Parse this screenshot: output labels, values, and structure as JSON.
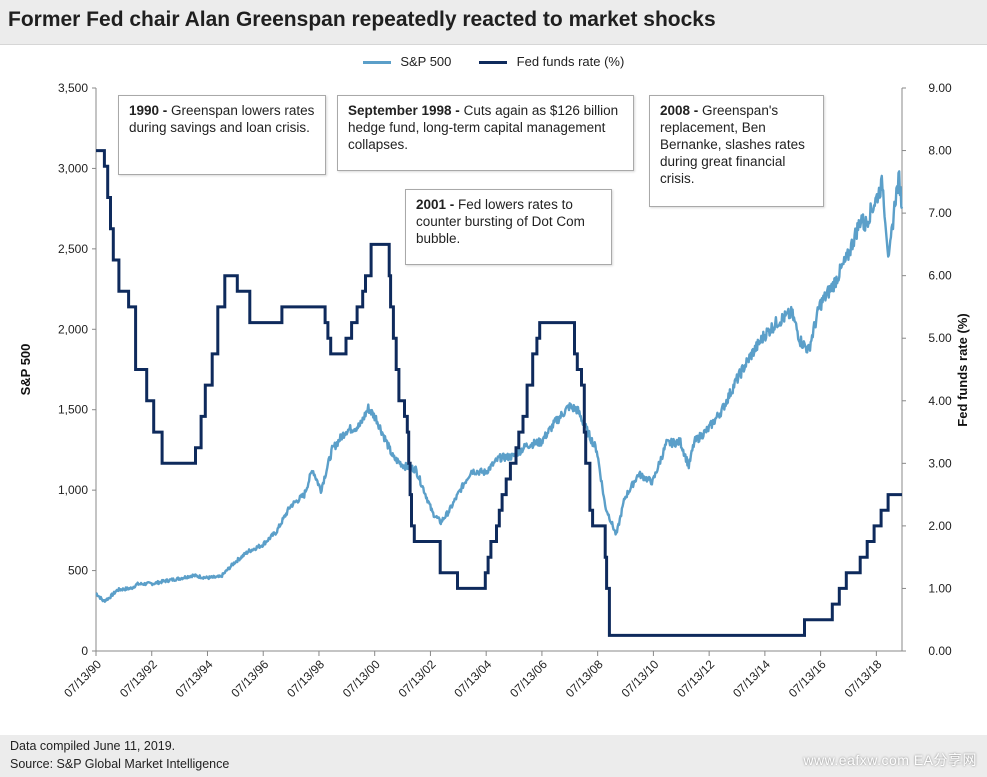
{
  "title": "Former Fed chair Alan Greenspan repeatedly reacted to market shocks",
  "legend": {
    "sp500": "S&P 500",
    "fed": "Fed funds rate (%)"
  },
  "annotations": [
    {
      "bold": "1990 -",
      "text": " Greenspan lowers rates during savings and loan crisis."
    },
    {
      "bold": "September 1998 -",
      "text": " Cuts again as $126 billion hedge fund, long-term capital management collapses."
    },
    {
      "bold": "2001 -",
      "text": " Fed lowers rates to counter bursting of Dot Com bubble."
    },
    {
      "bold": "2008 -",
      "text": " Greenspan's replacement, Ben Bernanke, slashes rates during great financial crisis."
    }
  ],
  "footer": {
    "line1": "Data compiled June 11, 2019.",
    "line2": "Source: S&P Global Market Intelligence"
  },
  "watermark": "www.eafxw.com  EA分享网",
  "colors": {
    "sp500": "#5b9fc9",
    "fed": "#0e2a5c"
  },
  "chart_data": {
    "type": "line",
    "title": "Former Fed chair Alan Greenspan repeatedly reacted to market shocks",
    "xlabel": "",
    "ylabel_left": "S&P 500",
    "ylabel_right": "Fed funds rate (%)",
    "x_range": [
      1990.53,
      2019.45
    ],
    "x_ticks": [
      {
        "x": 1990.53,
        "label": "07/13/90"
      },
      {
        "x": 1992.53,
        "label": "07/13/92"
      },
      {
        "x": 1994.53,
        "label": "07/13/94"
      },
      {
        "x": 1996.53,
        "label": "07/13/96"
      },
      {
        "x": 1998.53,
        "label": "07/13/98"
      },
      {
        "x": 2000.53,
        "label": "07/13/00"
      },
      {
        "x": 2002.53,
        "label": "07/13/02"
      },
      {
        "x": 2004.53,
        "label": "07/13/04"
      },
      {
        "x": 2006.53,
        "label": "07/13/06"
      },
      {
        "x": 2008.53,
        "label": "07/13/08"
      },
      {
        "x": 2010.53,
        "label": "07/13/10"
      },
      {
        "x": 2012.53,
        "label": "07/13/12"
      },
      {
        "x": 2014.53,
        "label": "07/13/14"
      },
      {
        "x": 2016.53,
        "label": "07/13/16"
      },
      {
        "x": 2018.53,
        "label": "07/13/18"
      }
    ],
    "ylim_left": [
      0,
      3500
    ],
    "yticks_left": [
      0,
      500,
      1000,
      1500,
      2000,
      2500,
      3000,
      3500
    ],
    "yticklabels_left": [
      "0",
      "500",
      "1,000",
      "1,500",
      "2,000",
      "2,500",
      "3,000",
      "3,500"
    ],
    "ylim_right": [
      0,
      9
    ],
    "yticks_right": [
      0,
      1,
      2,
      3,
      4,
      5,
      6,
      7,
      8,
      9
    ],
    "yticklabels_right": [
      "0.00",
      "1.00",
      "2.00",
      "3.00",
      "4.00",
      "5.00",
      "6.00",
      "7.00",
      "8.00",
      "9.00"
    ],
    "grid": false,
    "legend_position": "top-center",
    "series": [
      {
        "name": "S&P 500",
        "axis": "left",
        "points": [
          [
            1990.53,
            360
          ],
          [
            1990.8,
            310
          ],
          [
            1991.0,
            330
          ],
          [
            1991.3,
            380
          ],
          [
            1991.8,
            390
          ],
          [
            1992.0,
            415
          ],
          [
            1992.6,
            420
          ],
          [
            1993.0,
            435
          ],
          [
            1993.5,
            450
          ],
          [
            1994.0,
            470
          ],
          [
            1994.5,
            455
          ],
          [
            1995.0,
            460
          ],
          [
            1995.5,
            550
          ],
          [
            1996.0,
            620
          ],
          [
            1996.5,
            660
          ],
          [
            1997.0,
            740
          ],
          [
            1997.5,
            900
          ],
          [
            1998.0,
            970
          ],
          [
            1998.3,
            1130
          ],
          [
            1998.6,
            1000
          ],
          [
            1999.0,
            1250
          ],
          [
            1999.5,
            1370
          ],
          [
            2000.0,
            1400
          ],
          [
            2000.3,
            1510
          ],
          [
            2000.6,
            1440
          ],
          [
            2000.9,
            1320
          ],
          [
            2001.2,
            1200
          ],
          [
            2001.6,
            1150
          ],
          [
            2002.0,
            1130
          ],
          [
            2002.3,
            1000
          ],
          [
            2002.6,
            860
          ],
          [
            2002.9,
            800
          ],
          [
            2003.2,
            870
          ],
          [
            2003.6,
            1000
          ],
          [
            2004.0,
            1120
          ],
          [
            2004.5,
            1110
          ],
          [
            2005.0,
            1200
          ],
          [
            2005.5,
            1210
          ],
          [
            2006.0,
            1280
          ],
          [
            2006.5,
            1300
          ],
          [
            2007.0,
            1420
          ],
          [
            2007.5,
            1520
          ],
          [
            2007.8,
            1500
          ],
          [
            2008.2,
            1350
          ],
          [
            2008.5,
            1250
          ],
          [
            2008.8,
            900
          ],
          [
            2009.2,
            720
          ],
          [
            2009.5,
            950
          ],
          [
            2010.0,
            1100
          ],
          [
            2010.5,
            1050
          ],
          [
            2011.0,
            1290
          ],
          [
            2011.5,
            1300
          ],
          [
            2011.8,
            1150
          ],
          [
            2012.0,
            1300
          ],
          [
            2012.5,
            1380
          ],
          [
            2013.0,
            1500
          ],
          [
            2013.5,
            1680
          ],
          [
            2014.0,
            1830
          ],
          [
            2014.5,
            1960
          ],
          [
            2015.0,
            2050
          ],
          [
            2015.5,
            2100
          ],
          [
            2015.8,
            1930
          ],
          [
            2016.1,
            1870
          ],
          [
            2016.5,
            2150
          ],
          [
            2017.0,
            2280
          ],
          [
            2017.5,
            2450
          ],
          [
            2018.0,
            2700
          ],
          [
            2018.1,
            2640
          ],
          [
            2018.5,
            2800
          ],
          [
            2018.75,
            2910
          ],
          [
            2018.98,
            2420
          ],
          [
            2019.2,
            2800
          ],
          [
            2019.35,
            2940
          ],
          [
            2019.45,
            2750
          ]
        ]
      },
      {
        "name": "Fed funds rate (%)",
        "axis": "right",
        "points": [
          [
            1990.53,
            8.0
          ],
          [
            1990.83,
            7.75
          ],
          [
            1990.95,
            7.25
          ],
          [
            1991.05,
            6.75
          ],
          [
            1991.15,
            6.25
          ],
          [
            1991.35,
            5.75
          ],
          [
            1991.7,
            5.5
          ],
          [
            1991.95,
            4.5
          ],
          [
            1992.35,
            4.0
          ],
          [
            1992.6,
            3.5
          ],
          [
            1992.9,
            3.0
          ],
          [
            1994.1,
            3.25
          ],
          [
            1994.3,
            3.75
          ],
          [
            1994.45,
            4.25
          ],
          [
            1994.7,
            4.75
          ],
          [
            1994.9,
            5.5
          ],
          [
            1995.15,
            6.0
          ],
          [
            1995.6,
            5.75
          ],
          [
            1996.05,
            5.25
          ],
          [
            1997.2,
            5.5
          ],
          [
            1998.75,
            5.25
          ],
          [
            1998.85,
            5.0
          ],
          [
            1998.95,
            4.75
          ],
          [
            1999.5,
            5.0
          ],
          [
            1999.7,
            5.25
          ],
          [
            1999.9,
            5.5
          ],
          [
            2000.1,
            5.75
          ],
          [
            2000.2,
            6.0
          ],
          [
            2000.4,
            6.5
          ],
          [
            2001.05,
            6.0
          ],
          [
            2001.1,
            5.5
          ],
          [
            2001.2,
            5.0
          ],
          [
            2001.3,
            4.5
          ],
          [
            2001.4,
            4.0
          ],
          [
            2001.6,
            3.75
          ],
          [
            2001.7,
            3.5
          ],
          [
            2001.75,
            3.0
          ],
          [
            2001.8,
            2.5
          ],
          [
            2001.85,
            2.0
          ],
          [
            2001.95,
            1.75
          ],
          [
            2002.88,
            1.25
          ],
          [
            2003.5,
            1.0
          ],
          [
            2004.5,
            1.25
          ],
          [
            2004.6,
            1.5
          ],
          [
            2004.7,
            1.75
          ],
          [
            2004.9,
            2.0
          ],
          [
            2005.0,
            2.25
          ],
          [
            2005.1,
            2.5
          ],
          [
            2005.25,
            2.75
          ],
          [
            2005.4,
            3.0
          ],
          [
            2005.6,
            3.25
          ],
          [
            2005.7,
            3.5
          ],
          [
            2005.85,
            3.75
          ],
          [
            2006.0,
            4.25
          ],
          [
            2006.2,
            4.75
          ],
          [
            2006.35,
            5.0
          ],
          [
            2006.45,
            5.25
          ],
          [
            2007.7,
            4.75
          ],
          [
            2007.8,
            4.5
          ],
          [
            2007.95,
            4.25
          ],
          [
            2008.05,
            3.5
          ],
          [
            2008.1,
            3.0
          ],
          [
            2008.25,
            2.25
          ],
          [
            2008.35,
            2.0
          ],
          [
            2008.8,
            1.5
          ],
          [
            2008.85,
            1.0
          ],
          [
            2008.95,
            0.25
          ],
          [
            2015.95,
            0.5
          ],
          [
            2016.95,
            0.75
          ],
          [
            2017.2,
            1.0
          ],
          [
            2017.45,
            1.25
          ],
          [
            2017.95,
            1.5
          ],
          [
            2018.2,
            1.75
          ],
          [
            2018.45,
            2.0
          ],
          [
            2018.7,
            2.25
          ],
          [
            2018.95,
            2.5
          ],
          [
            2019.45,
            2.5
          ]
        ]
      }
    ]
  }
}
